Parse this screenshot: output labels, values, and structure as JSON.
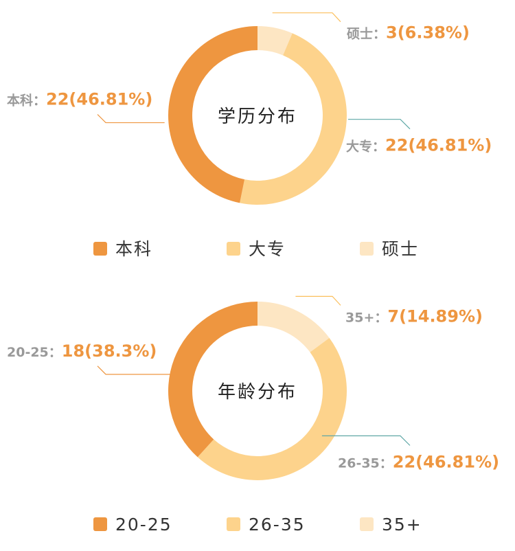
{
  "chart_data": [
    {
      "type": "pie",
      "title": "学历分布",
      "categories": [
        "本科",
        "大专",
        "硕士"
      ],
      "values": [
        22,
        22,
        3
      ],
      "percents": [
        "46.81%",
        "46.81%",
        "6.38%"
      ],
      "label_sep": "：",
      "colors": [
        "#ee9640",
        "#fdd38c",
        "#fde6c3"
      ],
      "legend": "bottom"
    },
    {
      "type": "pie",
      "title": "年龄分布",
      "categories": [
        "20-25",
        "26-35",
        "35+"
      ],
      "values": [
        18,
        22,
        7
      ],
      "percents": [
        "38.3%",
        "46.81%",
        "14.89%"
      ],
      "label_sep": "：",
      "colors": [
        "#ee9640",
        "#fdd38c",
        "#fde6c3"
      ],
      "legend": "bottom"
    }
  ]
}
